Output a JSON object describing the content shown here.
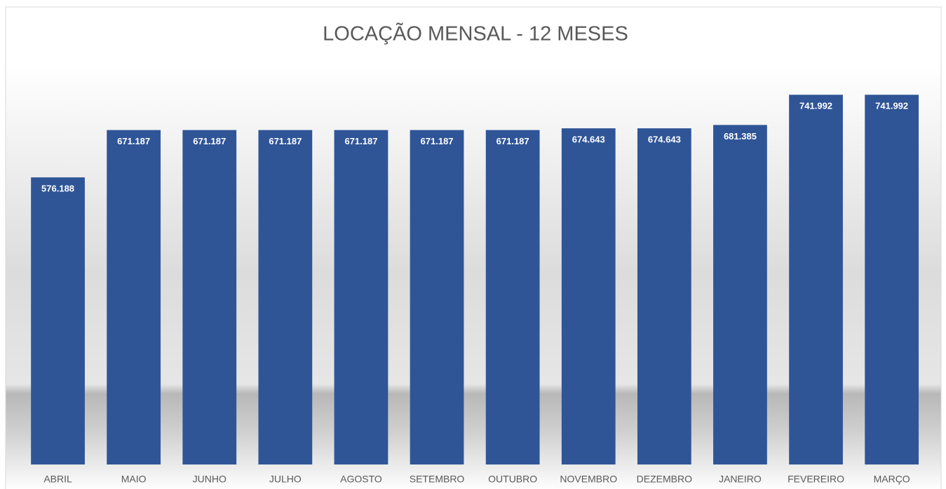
{
  "chart_data": {
    "type": "bar",
    "title": "LOCAÇÃO MENSAL - 12 MESES",
    "categories": [
      "ABRIL",
      "MAIO",
      "JUNHO",
      "JULHO",
      "AGOSTO",
      "SETEMBRO",
      "OUTUBRO",
      "NOVEMBRO",
      "DEZEMBRO",
      "JANEIRO",
      "FEVEREIRO",
      "MARÇO"
    ],
    "values": [
      576188,
      671187,
      671187,
      671187,
      671187,
      671187,
      671187,
      674643,
      674643,
      681385,
      741992,
      741992
    ],
    "value_labels": [
      "576.188",
      "671.187",
      "671.187",
      "671.187",
      "671.187",
      "671.187",
      "671.187",
      "674.643",
      "674.643",
      "681.385",
      "741.992",
      "741.992"
    ],
    "color": "#2f5597",
    "ylim": [
      0,
      800000
    ]
  }
}
